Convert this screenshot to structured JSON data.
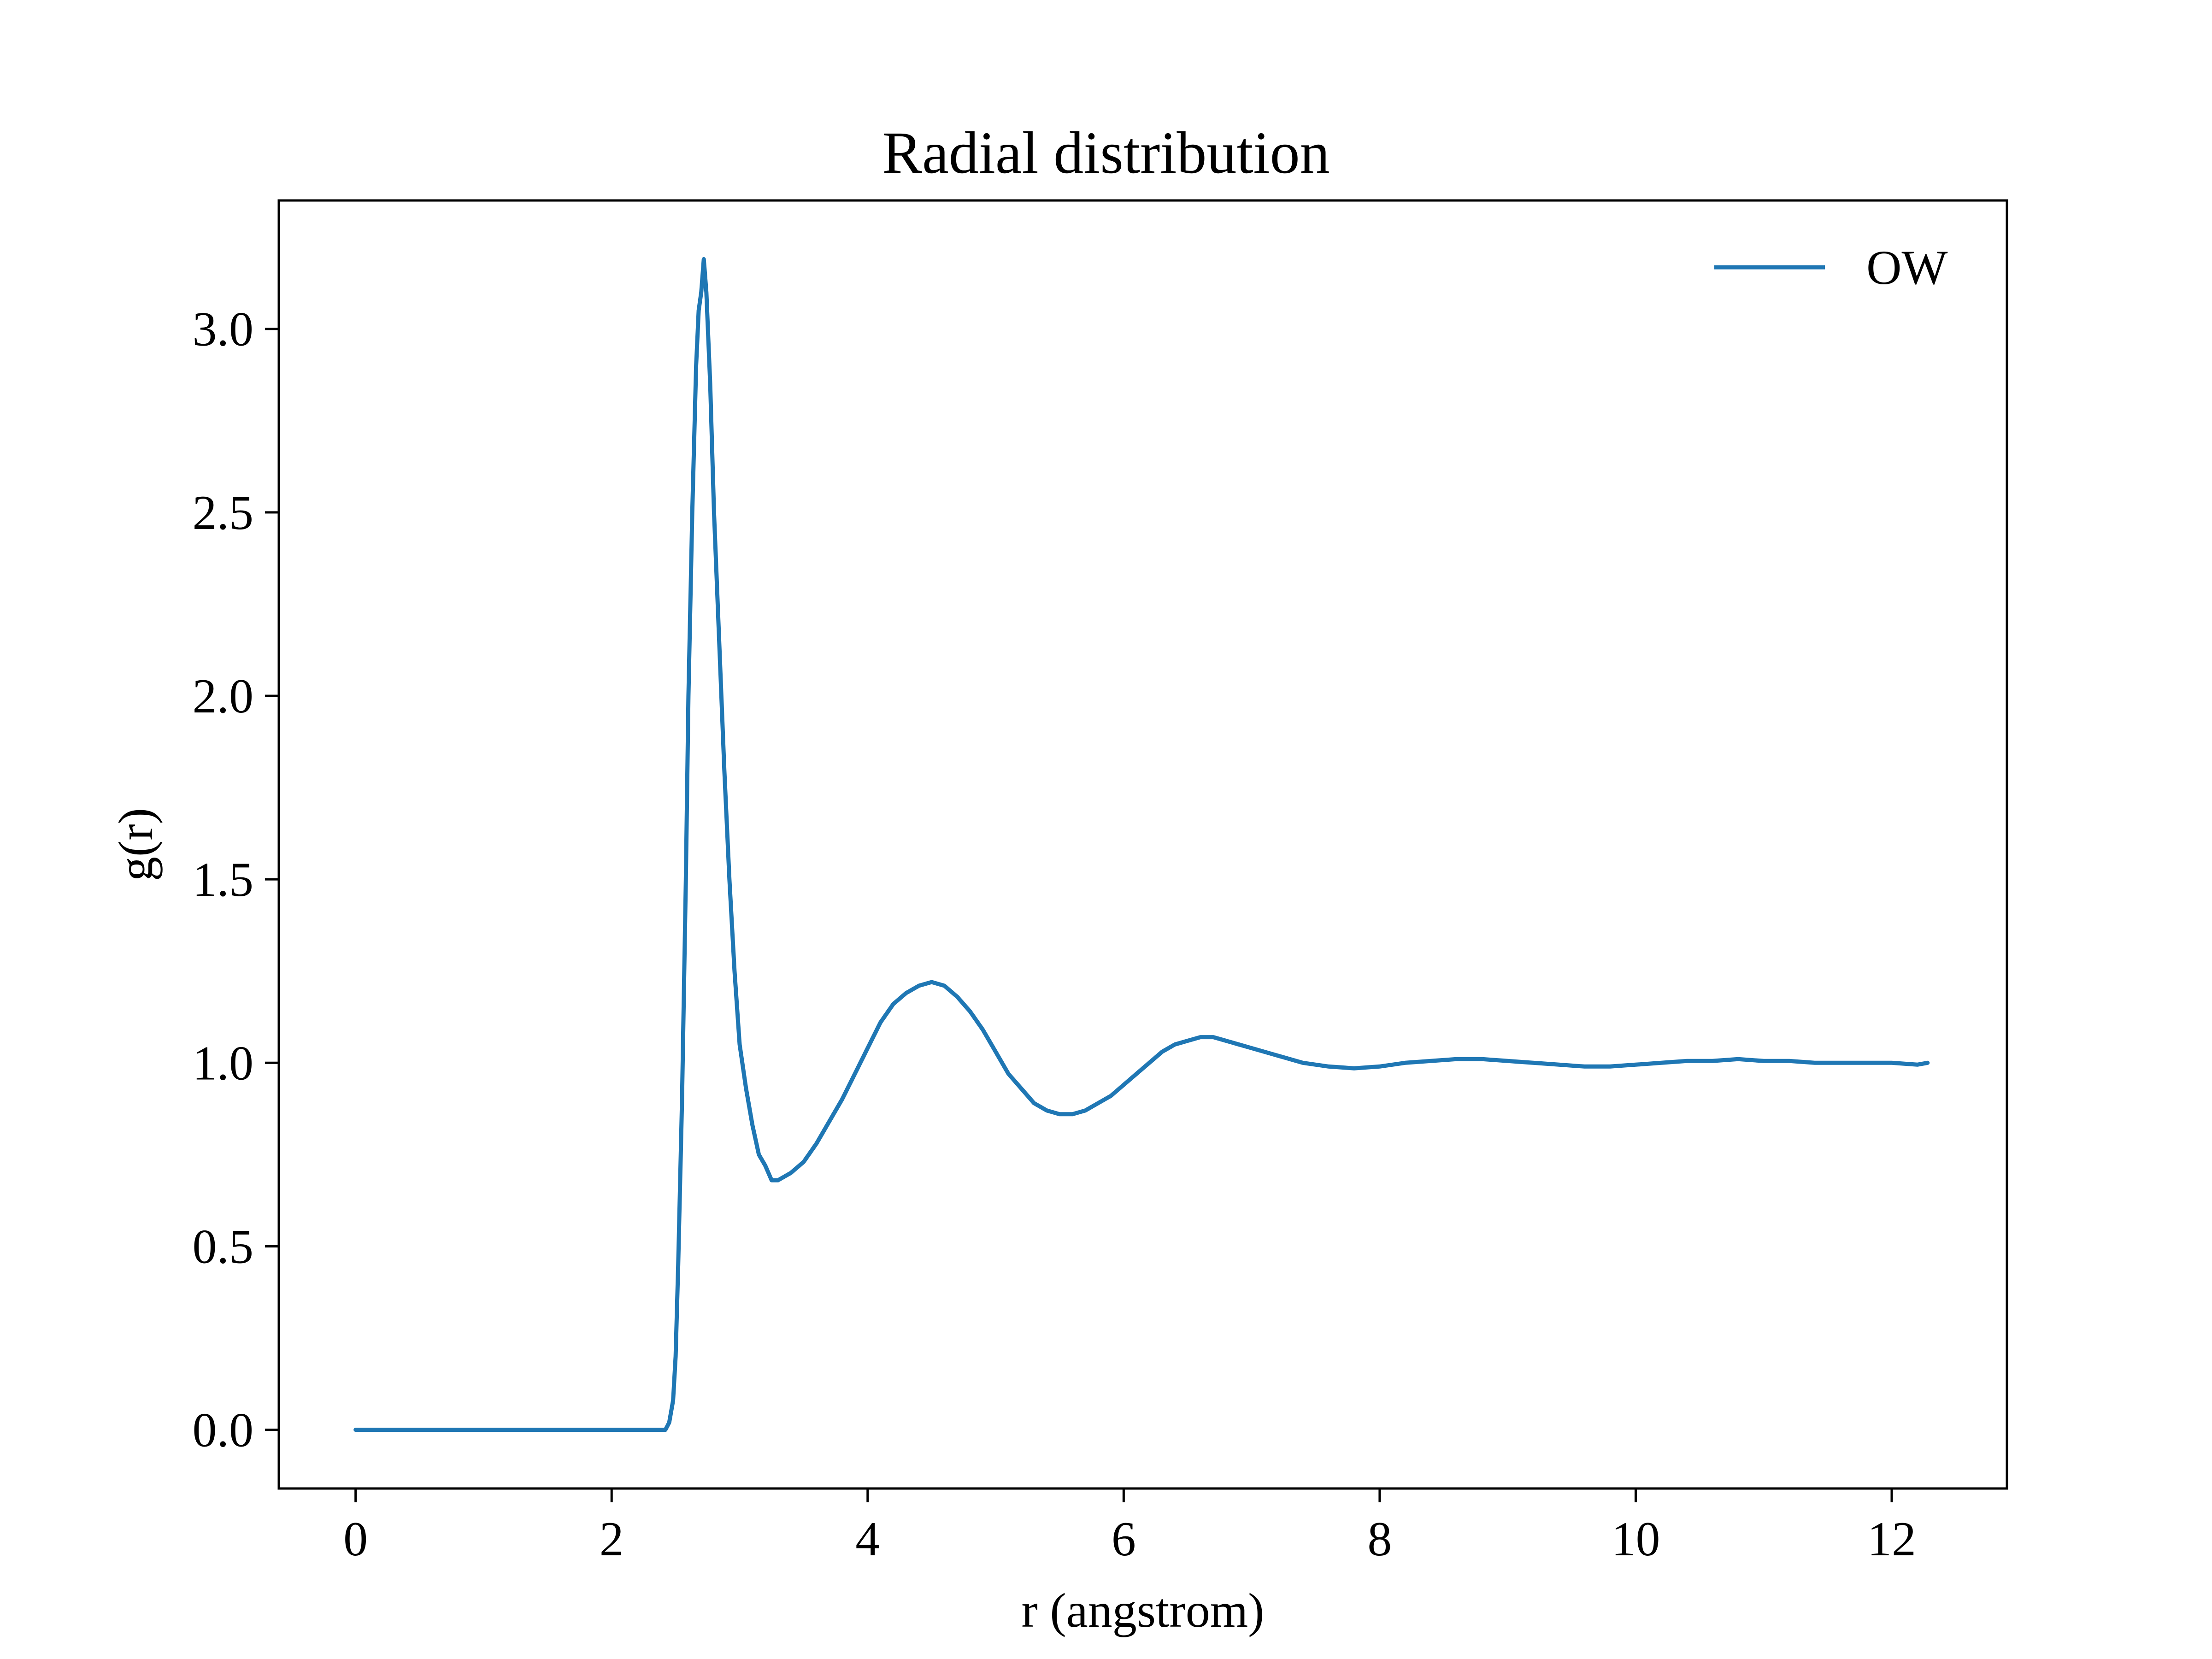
{
  "chart_data": {
    "type": "line",
    "title": "Radial distribution",
    "xlabel": "r (angstrom)",
    "ylabel": "g(r)",
    "xlim": [
      -0.6,
      12.9
    ],
    "ylim": [
      -0.16,
      3.35
    ],
    "xticks": [
      0,
      2,
      4,
      6,
      8,
      10,
      12
    ],
    "xtick_labels": [
      "0",
      "2",
      "4",
      "6",
      "8",
      "10",
      "12"
    ],
    "yticks": [
      0.0,
      0.5,
      1.0,
      1.5,
      2.0,
      2.5,
      3.0
    ],
    "ytick_labels": [
      "0.0",
      "0.5",
      "1.0",
      "1.5",
      "2.0",
      "2.5",
      "3.0"
    ],
    "grid": false,
    "legend": {
      "position": "upper-right"
    },
    "series": [
      {
        "name": "OW",
        "color": "#1f77b4",
        "points": [
          [
            0.0,
            0.0
          ],
          [
            0.5,
            0.0
          ],
          [
            1.0,
            0.0
          ],
          [
            1.5,
            0.0
          ],
          [
            2.0,
            0.0
          ],
          [
            2.35,
            0.0
          ],
          [
            2.42,
            0.0
          ],
          [
            2.45,
            0.02
          ],
          [
            2.48,
            0.08
          ],
          [
            2.5,
            0.2
          ],
          [
            2.52,
            0.45
          ],
          [
            2.55,
            0.9
          ],
          [
            2.58,
            1.5
          ],
          [
            2.6,
            2.0
          ],
          [
            2.63,
            2.5
          ],
          [
            2.66,
            2.9
          ],
          [
            2.68,
            3.05
          ],
          [
            2.7,
            3.1
          ],
          [
            2.72,
            3.19
          ],
          [
            2.74,
            3.1
          ],
          [
            2.77,
            2.85
          ],
          [
            2.8,
            2.5
          ],
          [
            2.84,
            2.15
          ],
          [
            2.88,
            1.8
          ],
          [
            2.92,
            1.5
          ],
          [
            2.96,
            1.25
          ],
          [
            3.0,
            1.05
          ],
          [
            3.05,
            0.93
          ],
          [
            3.1,
            0.83
          ],
          [
            3.15,
            0.75
          ],
          [
            3.2,
            0.72
          ],
          [
            3.25,
            0.68
          ],
          [
            3.3,
            0.68
          ],
          [
            3.35,
            0.69
          ],
          [
            3.4,
            0.7
          ],
          [
            3.5,
            0.73
          ],
          [
            3.6,
            0.78
          ],
          [
            3.7,
            0.84
          ],
          [
            3.8,
            0.9
          ],
          [
            3.9,
            0.97
          ],
          [
            4.0,
            1.04
          ],
          [
            4.1,
            1.11
          ],
          [
            4.2,
            1.16
          ],
          [
            4.3,
            1.19
          ],
          [
            4.4,
            1.21
          ],
          [
            4.5,
            1.22
          ],
          [
            4.6,
            1.21
          ],
          [
            4.7,
            1.18
          ],
          [
            4.8,
            1.14
          ],
          [
            4.9,
            1.09
          ],
          [
            5.0,
            1.03
          ],
          [
            5.1,
            0.97
          ],
          [
            5.2,
            0.93
          ],
          [
            5.3,
            0.89
          ],
          [
            5.4,
            0.87
          ],
          [
            5.5,
            0.86
          ],
          [
            5.6,
            0.86
          ],
          [
            5.7,
            0.87
          ],
          [
            5.8,
            0.89
          ],
          [
            5.9,
            0.91
          ],
          [
            6.0,
            0.94
          ],
          [
            6.1,
            0.97
          ],
          [
            6.2,
            1.0
          ],
          [
            6.3,
            1.03
          ],
          [
            6.4,
            1.05
          ],
          [
            6.5,
            1.06
          ],
          [
            6.6,
            1.07
          ],
          [
            6.7,
            1.07
          ],
          [
            6.8,
            1.06
          ],
          [
            6.9,
            1.05
          ],
          [
            7.0,
            1.04
          ],
          [
            7.2,
            1.02
          ],
          [
            7.4,
            1.0
          ],
          [
            7.6,
            0.99
          ],
          [
            7.8,
            0.985
          ],
          [
            8.0,
            0.99
          ],
          [
            8.2,
            1.0
          ],
          [
            8.4,
            1.005
          ],
          [
            8.6,
            1.01
          ],
          [
            8.8,
            1.01
          ],
          [
            9.0,
            1.005
          ],
          [
            9.2,
            1.0
          ],
          [
            9.4,
            0.995
          ],
          [
            9.6,
            0.99
          ],
          [
            9.8,
            0.99
          ],
          [
            10.0,
            0.995
          ],
          [
            10.2,
            1.0
          ],
          [
            10.4,
            1.005
          ],
          [
            10.6,
            1.005
          ],
          [
            10.8,
            1.01
          ],
          [
            11.0,
            1.005
          ],
          [
            11.2,
            1.005
          ],
          [
            11.4,
            1.0
          ],
          [
            11.6,
            1.0
          ],
          [
            11.8,
            1.0
          ],
          [
            12.0,
            1.0
          ],
          [
            12.2,
            0.995
          ],
          [
            12.28,
            1.0
          ]
        ]
      }
    ]
  }
}
